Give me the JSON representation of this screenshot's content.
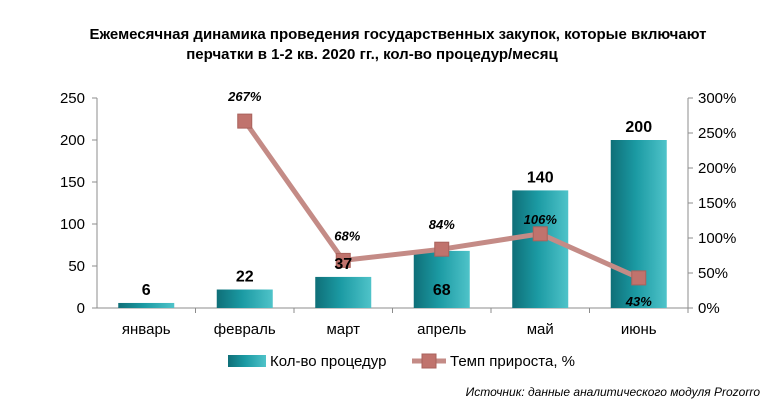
{
  "chart_data": {
    "type": "bar",
    "title_line1": "Ежемесячная динамика проведения государственных закупок, которые включают",
    "title_line2": "перчатки в 1-2 кв. 2020 гг., кол-во процедур/месяц",
    "categories": [
      "январь",
      "февраль",
      "март",
      "апрель",
      "май",
      "июнь"
    ],
    "series": [
      {
        "name": "Кол-во процедур",
        "type": "bar",
        "axis": "left",
        "values": [
          6,
          22,
          37,
          68,
          140,
          200
        ],
        "labels": [
          "6",
          "22",
          "37",
          "68",
          "140",
          "200"
        ],
        "color": "#1b9aa3"
      },
      {
        "name": "Темп прироста, %",
        "type": "line",
        "axis": "right",
        "values": [
          null,
          267,
          68,
          84,
          106,
          43
        ],
        "labels": [
          "",
          "267%",
          "68%",
          "84%",
          "106%",
          "43%"
        ],
        "color": "#c48b86",
        "marker_color": "#c0736d"
      }
    ],
    "y_left": {
      "ylim": [
        0,
        250
      ],
      "ticks": [
        "0",
        "50",
        "100",
        "150",
        "200",
        "250"
      ]
    },
    "y_right": {
      "ylim": [
        0,
        300
      ],
      "ticks": [
        "0%",
        "50%",
        "100%",
        "150%",
        "200%",
        "250%",
        "300%"
      ]
    },
    "legend_position": "bottom",
    "grid": false,
    "source": "Источник: данные аналитического модуля Prozorro"
  }
}
